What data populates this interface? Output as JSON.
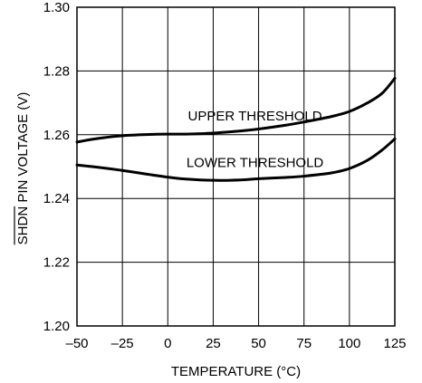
{
  "chart_data": {
    "type": "line",
    "xlabel": "TEMPERATURE (°C)",
    "ylabel_overbar": "SHDN",
    "ylabel_rest": " PIN VOLTAGE (V)",
    "xlim": [
      -50,
      125
    ],
    "ylim": [
      1.2,
      1.3
    ],
    "x_ticks": [
      -50,
      -25,
      0,
      25,
      50,
      75,
      100,
      125
    ],
    "x_tick_labels": [
      "–50",
      "–25",
      "0",
      "25",
      "50",
      "75",
      "100",
      "125"
    ],
    "y_ticks": [
      1.2,
      1.22,
      1.24,
      1.26,
      1.28,
      1.3
    ],
    "y_tick_labels": [
      "1.20",
      "1.22",
      "1.24",
      "1.26",
      "1.28",
      "1.30"
    ],
    "grid": true,
    "series": [
      {
        "name": "UPPER THRESHOLD",
        "x": [
          -50,
          -40,
          -25,
          -10,
          0,
          10,
          25,
          40,
          50,
          65,
          75,
          90,
          100,
          110,
          118,
          125
        ],
        "y": [
          1.2577,
          1.2587,
          1.2597,
          1.2601,
          1.2602,
          1.2602,
          1.2605,
          1.2612,
          1.2618,
          1.263,
          1.264,
          1.2657,
          1.2673,
          1.27,
          1.273,
          1.2777
        ]
      },
      {
        "name": "LOWER THRESHOLD",
        "x": [
          -50,
          -40,
          -25,
          -10,
          0,
          10,
          25,
          40,
          50,
          65,
          75,
          90,
          100,
          110,
          118,
          125
        ],
        "y": [
          1.2505,
          1.2499,
          1.2488,
          1.2475,
          1.2467,
          1.2461,
          1.2457,
          1.2458,
          1.2462,
          1.2466,
          1.247,
          1.248,
          1.2494,
          1.252,
          1.2552,
          1.2587
        ]
      }
    ],
    "annotations": [
      {
        "text": "UPPER THRESHOLD",
        "x": 48,
        "y": 1.2645
      },
      {
        "text": "LOWER THRESHOLD",
        "x": 48,
        "y": 1.2498
      }
    ]
  }
}
